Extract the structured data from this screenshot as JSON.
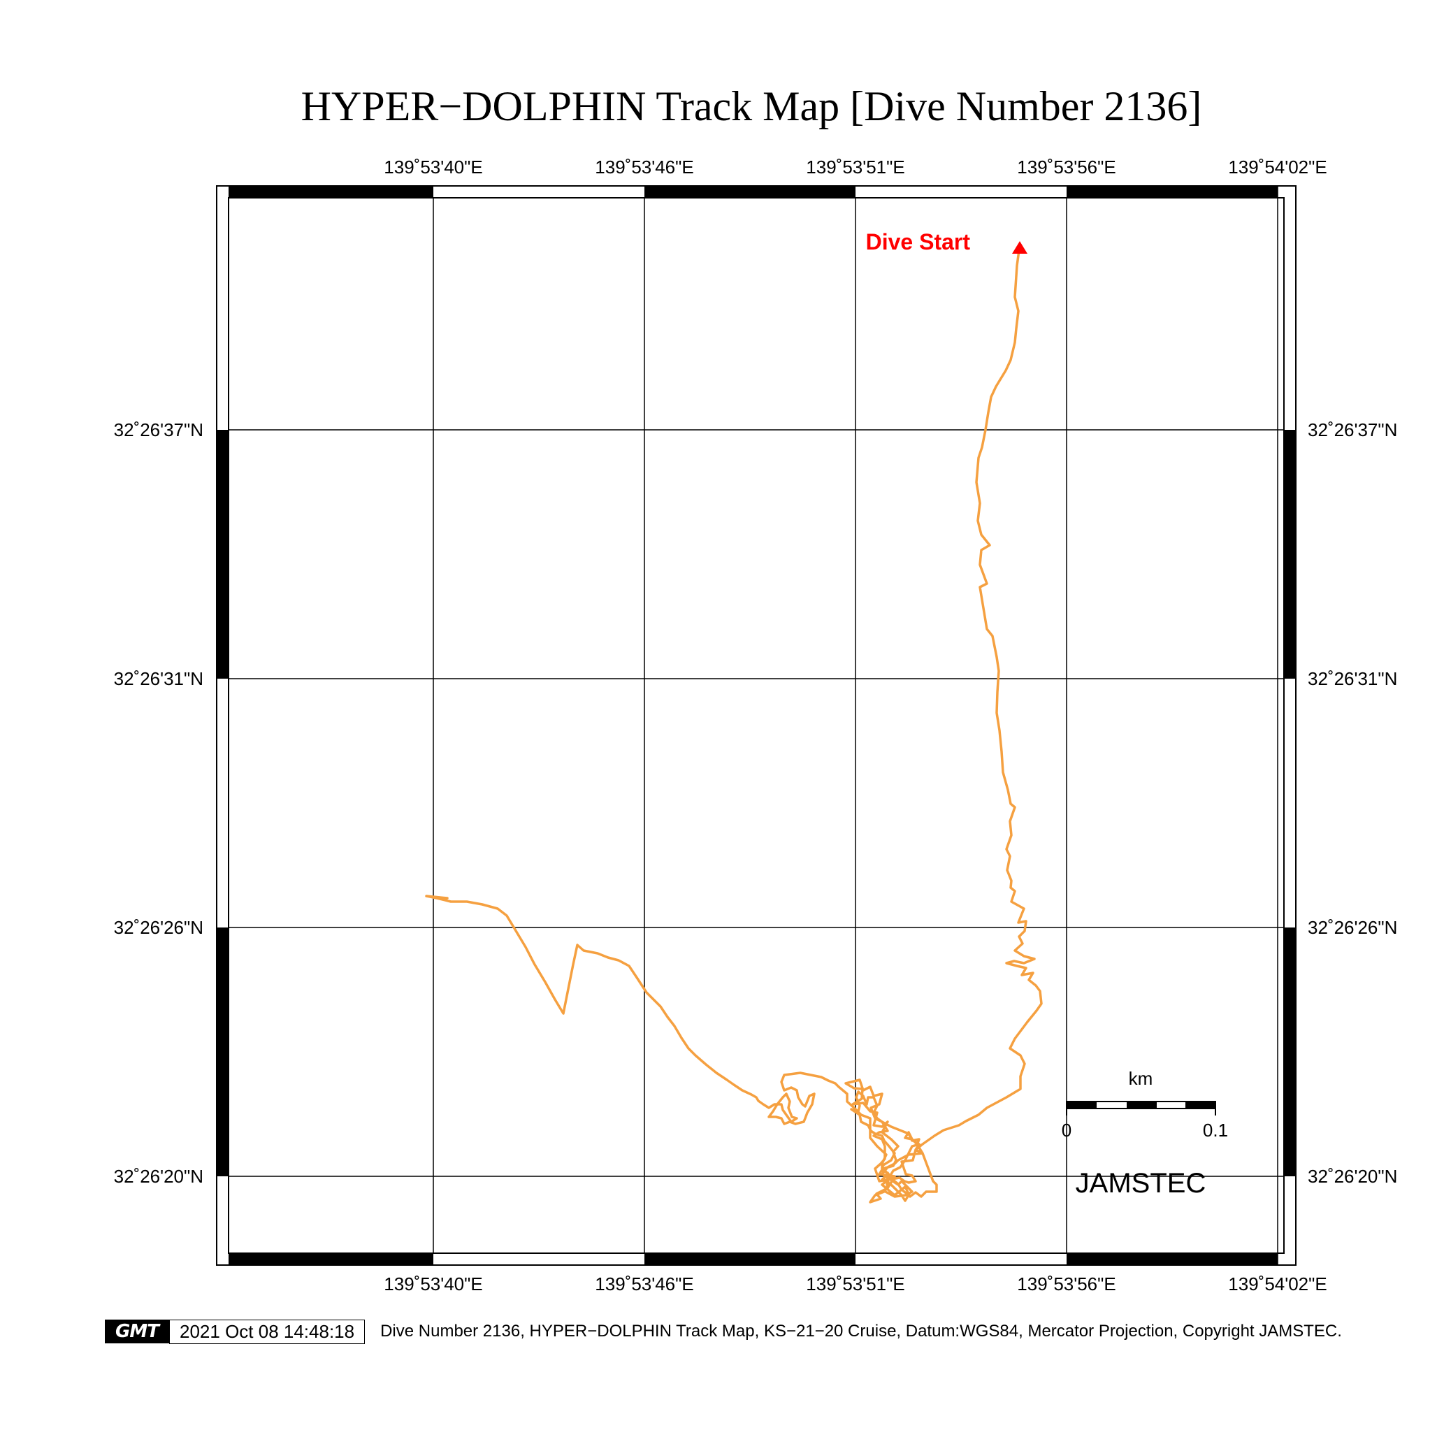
{
  "title": "HYPER−DOLPHIN Track Map [Dive Number 2136]",
  "map": {
    "lon_ticks": [
      "139˚53'40\"E",
      "139˚53'46\"E",
      "139˚53'51\"E",
      "139˚53'56\"E",
      "139˚54'02\"E"
    ],
    "lat_ticks": [
      "32˚26'37\"N",
      "32˚26'31\"N",
      "32˚26'26\"N",
      "32˚26'20\"N"
    ],
    "dive_start_label": "Dive Start",
    "track_color": "#f5a040",
    "start_marker_color": "#ff0000",
    "scale_bar": {
      "unit": "km",
      "min_label": "0",
      "max_label": "0.1"
    },
    "agency_label": "JAMSTEC"
  },
  "footer": {
    "logo_text": "GMT",
    "timestamp": "2021 Oct 08 14:48:18",
    "caption": "Dive Number 2136, HYPER−DOLPHIN Track Map, KS−21−20 Cruise, Datum:WGS84, Mercator Projection, Copyright JAMSTEC."
  }
}
